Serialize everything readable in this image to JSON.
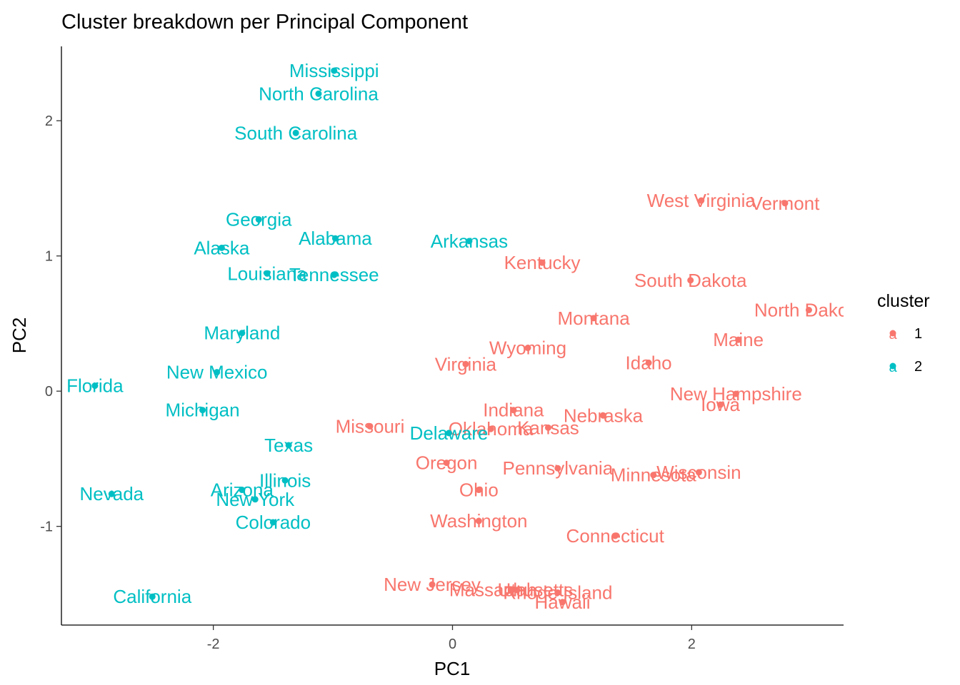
{
  "chart_data": {
    "type": "scatter",
    "title": "Cluster breakdown per Principal Component",
    "xlabel": "PC1",
    "ylabel": "PC2",
    "xlim": [
      -3.27,
      3.27
    ],
    "ylim": [
      -1.73,
      2.55
    ],
    "xticks": [
      -2,
      0,
      2
    ],
    "yticks": [
      -1,
      0,
      1,
      2
    ],
    "grid": false,
    "legend": {
      "title": "cluster",
      "position": "right",
      "entries": [
        {
          "label": "1",
          "color": "#F8766D"
        },
        {
          "label": "2",
          "color": "#00BFC4"
        }
      ]
    },
    "series": [
      {
        "name": "1",
        "color": "#F8766D",
        "points": [
          {
            "label": "West Virginia",
            "x": 2.08,
            "y": 1.41
          },
          {
            "label": "Vermont",
            "x": 2.78,
            "y": 1.39
          },
          {
            "label": "Kentucky",
            "x": 0.75,
            "y": 0.95
          },
          {
            "label": "South Dakota",
            "x": 1.99,
            "y": 0.82
          },
          {
            "label": "North Dakota",
            "x": 2.98,
            "y": 0.6
          },
          {
            "label": "Montana",
            "x": 1.18,
            "y": 0.54
          },
          {
            "label": "Maine",
            "x": 2.39,
            "y": 0.38
          },
          {
            "label": "Wyoming",
            "x": 0.63,
            "y": 0.32
          },
          {
            "label": "Virginia",
            "x": 0.11,
            "y": 0.2
          },
          {
            "label": "Idaho",
            "x": 1.64,
            "y": 0.21
          },
          {
            "label": "New Hampshire",
            "x": 2.37,
            "y": -0.02
          },
          {
            "label": "Iowa",
            "x": 2.24,
            "y": -0.1
          },
          {
            "label": "Indiana",
            "x": 0.51,
            "y": -0.14
          },
          {
            "label": "Nebraska",
            "x": 1.26,
            "y": -0.18
          },
          {
            "label": "Missouri",
            "x": -0.69,
            "y": -0.26
          },
          {
            "label": "Oklahoma",
            "x": 0.32,
            "y": -0.28
          },
          {
            "label": "Kansas",
            "x": 0.8,
            "y": -0.27
          },
          {
            "label": "Oregon",
            "x": -0.05,
            "y": -0.53
          },
          {
            "label": "Pennsylvania",
            "x": 0.88,
            "y": -0.57
          },
          {
            "label": "Minnesota",
            "x": 1.68,
            "y": -0.62
          },
          {
            "label": "Wisconsin",
            "x": 2.06,
            "y": -0.6
          },
          {
            "label": "Ohio",
            "x": 0.22,
            "y": -0.73
          },
          {
            "label": "Washington",
            "x": 0.22,
            "y": -0.96
          },
          {
            "label": "Connecticut",
            "x": 1.36,
            "y": -1.07
          },
          {
            "label": "New Jersey",
            "x": -0.17,
            "y": -1.43
          },
          {
            "label": "Massachusetts",
            "x": 0.49,
            "y": -1.47
          },
          {
            "label": "Utah",
            "x": 0.54,
            "y": -1.47
          },
          {
            "label": "Rhode Island",
            "x": 0.88,
            "y": -1.49
          },
          {
            "label": "Hawaii",
            "x": 0.92,
            "y": -1.56
          }
        ]
      },
      {
        "name": "2",
        "color": "#00BFC4",
        "points": [
          {
            "label": "Mississippi",
            "x": -0.99,
            "y": 2.37
          },
          {
            "label": "North Carolina",
            "x": -1.12,
            "y": 2.2
          },
          {
            "label": "South Carolina",
            "x": -1.31,
            "y": 1.91
          },
          {
            "label": "Georgia",
            "x": -1.62,
            "y": 1.27
          },
          {
            "label": "Alabama",
            "x": -0.98,
            "y": 1.13
          },
          {
            "label": "Arkansas",
            "x": 0.14,
            "y": 1.11
          },
          {
            "label": "Alaska",
            "x": -1.93,
            "y": 1.06
          },
          {
            "label": "Louisiana",
            "x": -1.55,
            "y": 0.87
          },
          {
            "label": "Tennessee",
            "x": -0.99,
            "y": 0.86
          },
          {
            "label": "Maryland",
            "x": -1.76,
            "y": 0.43
          },
          {
            "label": "New Mexico",
            "x": -1.97,
            "y": 0.14
          },
          {
            "label": "Florida",
            "x": -2.99,
            "y": 0.04
          },
          {
            "label": "Michigan",
            "x": -2.09,
            "y": -0.14
          },
          {
            "label": "Delaware",
            "x": -0.03,
            "y": -0.31
          },
          {
            "label": "Texas",
            "x": -1.37,
            "y": -0.4
          },
          {
            "label": "Illinois",
            "x": -1.4,
            "y": -0.66
          },
          {
            "label": "Arizona",
            "x": -1.76,
            "y": -0.73
          },
          {
            "label": "New York",
            "x": -1.65,
            "y": -0.8
          },
          {
            "label": "Nevada",
            "x": -2.85,
            "y": -0.76
          },
          {
            "label": "Colorado",
            "x": -1.5,
            "y": -0.97
          },
          {
            "label": "California",
            "x": -2.51,
            "y": -1.52
          }
        ]
      }
    ]
  }
}
